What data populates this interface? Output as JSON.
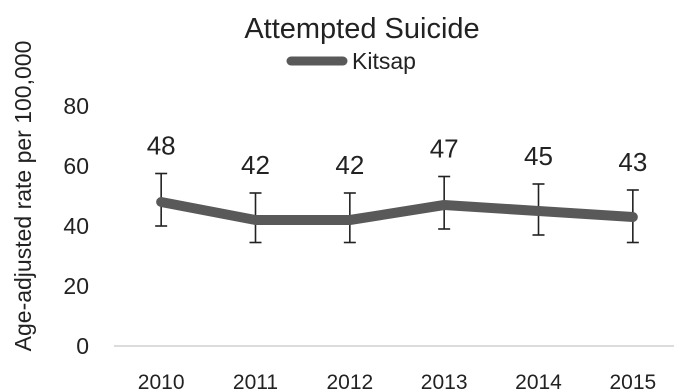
{
  "chart_data": {
    "type": "line",
    "title": "Attempted Suicide",
    "ylabel": "Age-adjusted rate per 100,000",
    "xlabel": "",
    "categories": [
      "2010",
      "2011",
      "2012",
      "2013",
      "2014",
      "2015"
    ],
    "series": [
      {
        "name": "Kitsap",
        "values": [
          48,
          42,
          42,
          47,
          45,
          43
        ],
        "labels": [
          "48",
          "42",
          "42",
          "47",
          "45",
          "43"
        ],
        "ci_lower": [
          40,
          34.5,
          34.5,
          39,
          37,
          34.5
        ],
        "ci_upper": [
          57.5,
          51,
          51,
          56.5,
          54,
          52
        ],
        "color": "#595959"
      }
    ],
    "ylim": [
      0,
      80
    ],
    "yticks": [
      "0",
      "20",
      "40",
      "60",
      "80"
    ],
    "grid": false,
    "legend_position": "top"
  }
}
